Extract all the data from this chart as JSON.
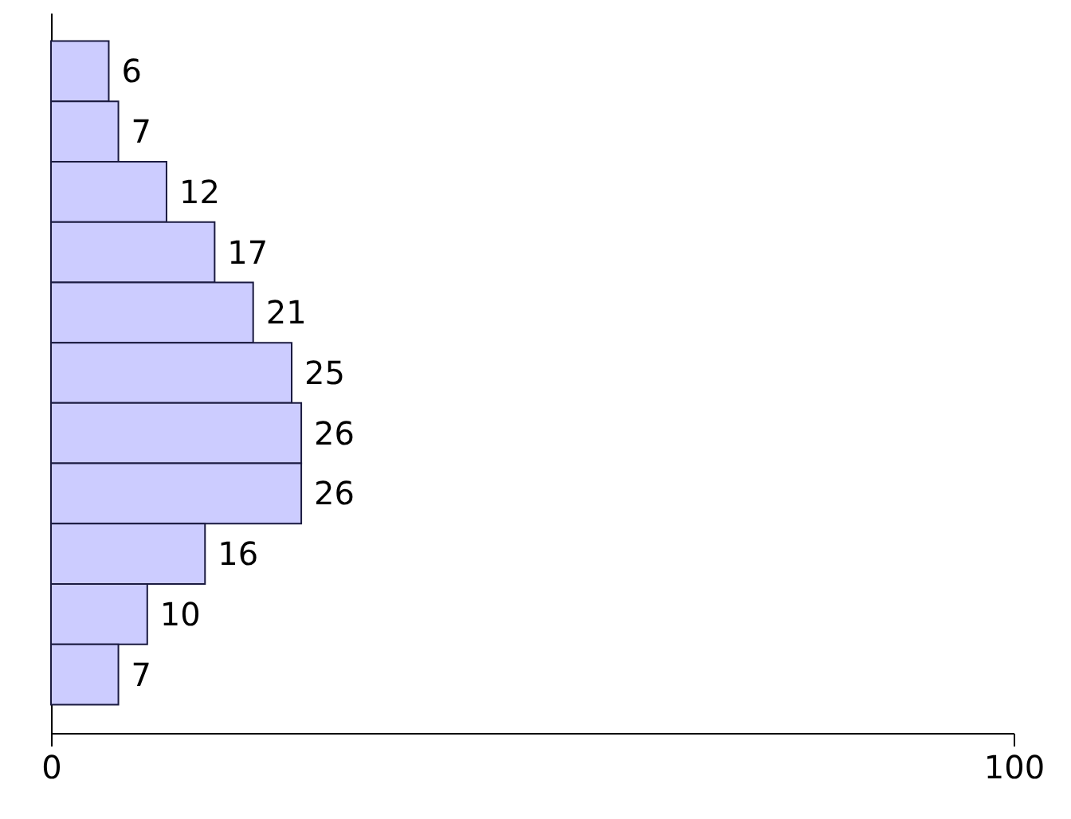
{
  "chart_data": {
    "type": "bar",
    "orientation": "horizontal",
    "categories": [
      null,
      null,
      null,
      null,
      null,
      null,
      null,
      null,
      null,
      null,
      null
    ],
    "values": [
      6,
      7,
      12,
      17,
      21,
      25,
      26,
      26,
      16,
      10,
      7
    ],
    "color": "#ccccff",
    "xlim": [
      0,
      100
    ],
    "xticks": [
      0,
      100
    ],
    "data_labels": true
  }
}
